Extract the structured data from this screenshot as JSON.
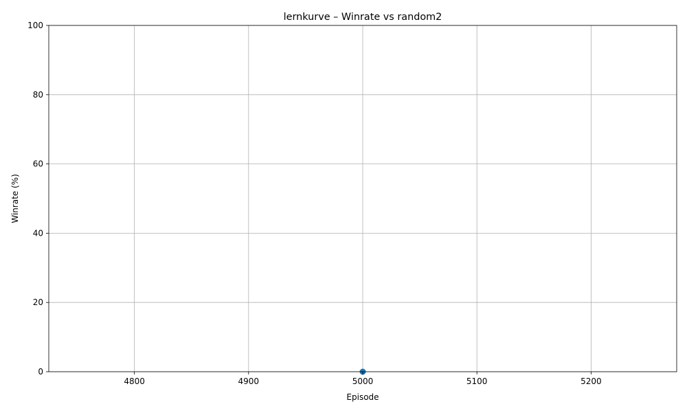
{
  "chart_data": {
    "type": "line",
    "title": "lernkurve – Winrate vs random2",
    "xlabel": "Episode",
    "ylabel": "Winrate (%)",
    "xlim": [
      4725,
      5275
    ],
    "ylim": [
      0,
      100
    ],
    "x_ticks": [
      4800,
      4900,
      5000,
      5100,
      5200
    ],
    "y_ticks": [
      0,
      20,
      40,
      60,
      80,
      100
    ],
    "grid": true,
    "series": [
      {
        "color": "#1f77b4",
        "marker": "circle",
        "points": [
          {
            "x": 5000,
            "y": 0
          }
        ]
      }
    ]
  }
}
